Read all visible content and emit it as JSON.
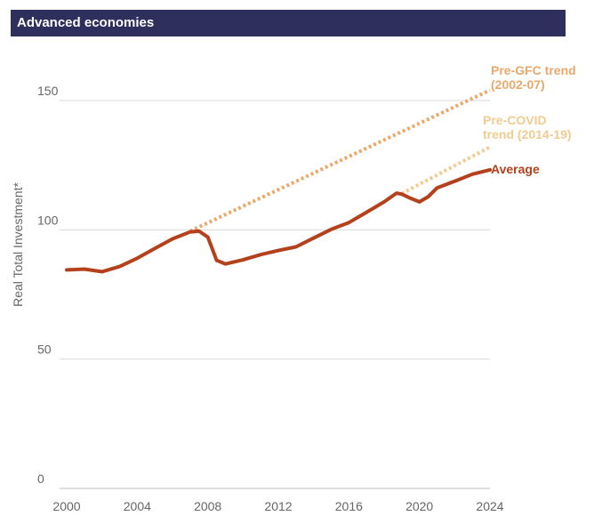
{
  "chart_data": {
    "type": "line",
    "title": "Advanced economies",
    "ylabel": "Real Total Investment*",
    "xlabel": "",
    "xlim": [
      2000,
      2024
    ],
    "ylim": [
      0,
      160
    ],
    "x_ticks": [
      "2000",
      "2004",
      "2008",
      "2012",
      "2016",
      "2020",
      "2024"
    ],
    "y_ticks": [
      "0",
      "50",
      "100",
      "150"
    ],
    "grid": "horizontal",
    "series": [
      {
        "name": "Average",
        "color": "#b5401c",
        "style": "solid",
        "label_lines": [
          "Average"
        ],
        "points": [
          [
            2000,
            84.5
          ],
          [
            2001,
            84.8
          ],
          [
            2002,
            83.8
          ],
          [
            2003,
            85.8
          ],
          [
            2004,
            89
          ],
          [
            2005,
            92.8
          ],
          [
            2006,
            96.5
          ],
          [
            2007,
            99.2
          ],
          [
            2007.5,
            99.5
          ],
          [
            2008,
            97.2
          ],
          [
            2008.5,
            88.2
          ],
          [
            2009,
            86.8
          ],
          [
            2010,
            88.4
          ],
          [
            2011,
            90.4
          ],
          [
            2012,
            92
          ],
          [
            2013,
            93.4
          ],
          [
            2014,
            96.8
          ],
          [
            2015,
            100.2
          ],
          [
            2016,
            102.8
          ],
          [
            2017,
            106.8
          ],
          [
            2018,
            110.8
          ],
          [
            2018.7,
            114.2
          ],
          [
            2019,
            113.8
          ],
          [
            2019.5,
            112.2
          ],
          [
            2020,
            110.8
          ],
          [
            2020.5,
            112.8
          ],
          [
            2021,
            116.2
          ],
          [
            2022,
            118.8
          ],
          [
            2023,
            121.5
          ],
          [
            2024,
            123.2
          ]
        ]
      },
      {
        "name": "Pre-GFC trend (2002-07)",
        "color": "#eaa86a",
        "style": "dotted",
        "label_lines": [
          "Pre-GFC trend",
          "(2002-07)"
        ],
        "points": [
          [
            2007,
            99.5
          ],
          [
            2024,
            154
          ]
        ]
      },
      {
        "name": "Pre-COVID trend (2014-19)",
        "color": "#f3cb91",
        "style": "dotted",
        "label_lines": [
          "Pre-COVID",
          "trend (2014-19)"
        ],
        "points": [
          [
            2019,
            114
          ],
          [
            2024,
            132
          ]
        ]
      }
    ]
  }
}
